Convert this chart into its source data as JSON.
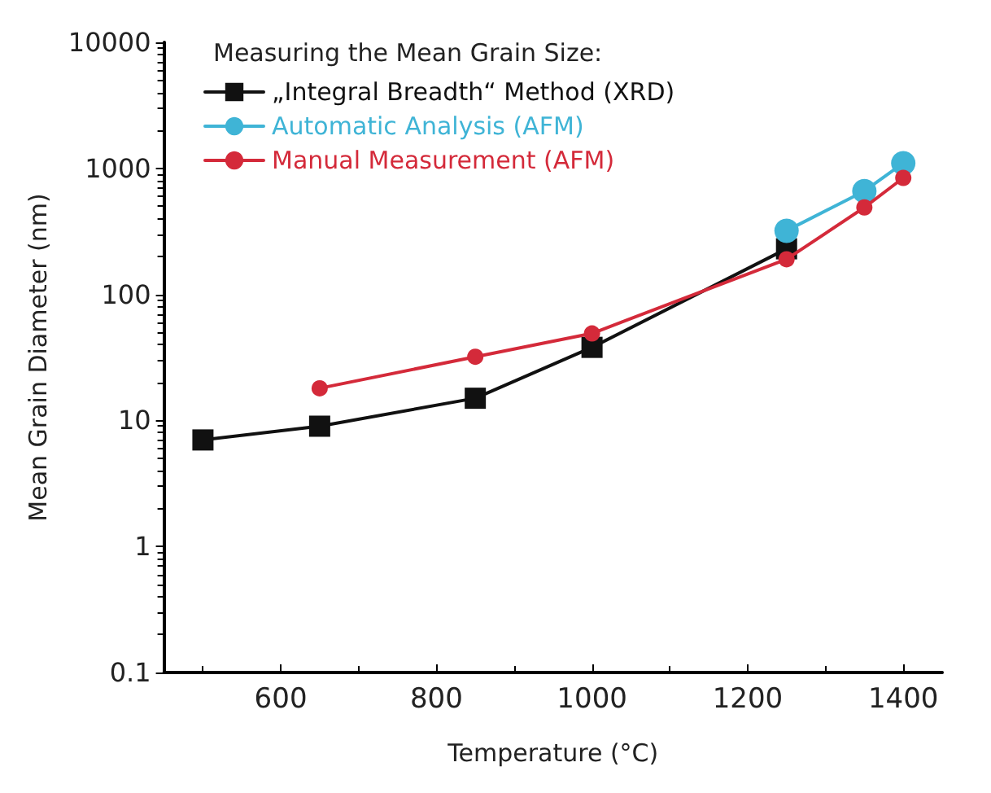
{
  "chart_data": {
    "type": "line",
    "xlabel": "Temperature (°C)",
    "ylabel": "Mean Grain Diameter (nm)",
    "legend_title": "Measuring the Mean Grain Size:",
    "legend": "top left",
    "log": "y",
    "grid": false,
    "xlim": [
      450,
      1450
    ],
    "xticks": [
      600,
      800,
      1000,
      1200,
      1400
    ],
    "ylim": [
      0.1,
      10000
    ],
    "yticks": [
      0.1,
      1,
      10,
      100,
      1000,
      10000
    ],
    "series": [
      {
        "name": "„Integral Breadth“ Method (XRD)",
        "color": "#111111",
        "marker": "square",
        "x": [
          500,
          650,
          850,
          1000,
          1250
        ],
        "values": [
          7,
          9,
          15,
          38,
          230
        ]
      },
      {
        "name": "Automatic Analysis (AFM)",
        "color": "#3fb4d6",
        "marker": "circle",
        "x": [
          1250,
          1350,
          1400
        ],
        "values": [
          320,
          660,
          1100
        ]
      },
      {
        "name": "Manual Measurement (AFM)",
        "color": "#d42a3a",
        "marker": "circle",
        "x": [
          650,
          850,
          1000,
          1250,
          1350,
          1400
        ],
        "values": [
          18,
          32,
          49,
          190,
          490,
          840
        ]
      }
    ]
  }
}
